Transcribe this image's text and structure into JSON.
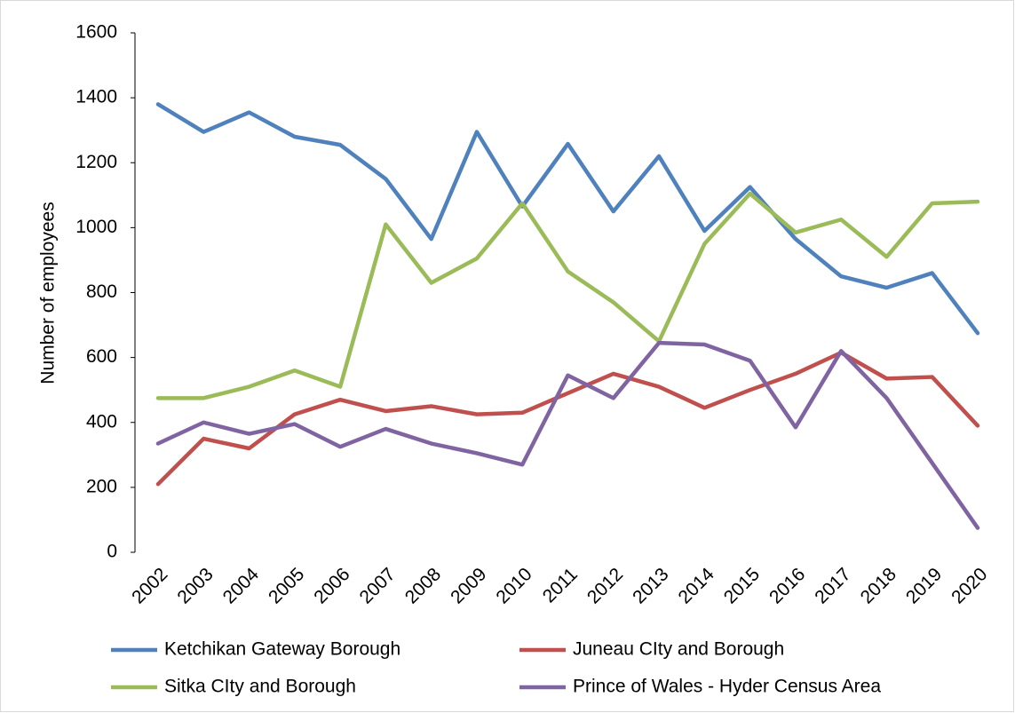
{
  "chart_data": {
    "type": "line",
    "y_label": "Number of employees",
    "categories": [
      "2002",
      "2003",
      "2004",
      "2005",
      "2006",
      "2007",
      "2008",
      "2009",
      "2010",
      "2011",
      "2012",
      "2013",
      "2014",
      "2015",
      "2016",
      "2017",
      "2018",
      "2019",
      "2020"
    ],
    "series": [
      {
        "name": "Ketchikan Gateway Borough",
        "color": "#4f81bd",
        "values": [
          1380,
          1295,
          1355,
          1280,
          1255,
          1150,
          965,
          1295,
          1065,
          1258,
          1050,
          1220,
          990,
          1125,
          965,
          850,
          815,
          860,
          675
        ]
      },
      {
        "name": "Juneau CIty and Borough",
        "color": "#c0504d",
        "values": [
          210,
          350,
          320,
          425,
          470,
          435,
          450,
          425,
          430,
          490,
          550,
          510,
          445,
          500,
          550,
          615,
          535,
          540,
          390
        ]
      },
      {
        "name": "Sitka CIty and Borough",
        "color": "#9bbb59",
        "values": [
          475,
          475,
          510,
          560,
          510,
          1010,
          830,
          905,
          1075,
          865,
          770,
          650,
          950,
          1105,
          985,
          1025,
          910,
          1075,
          1080
        ]
      },
      {
        "name": "Prince of Wales - Hyder Census Area",
        "color": "#8064a2",
        "values": [
          335,
          400,
          365,
          395,
          325,
          380,
          335,
          305,
          270,
          545,
          475,
          645,
          640,
          590,
          385,
          620,
          475,
          275,
          75
        ]
      }
    ],
    "ylim": [
      0,
      1600
    ],
    "yticks": [
      0,
      200,
      400,
      600,
      800,
      1000,
      1200,
      1400,
      1600
    ],
    "grid": false,
    "legend": "bottom"
  }
}
